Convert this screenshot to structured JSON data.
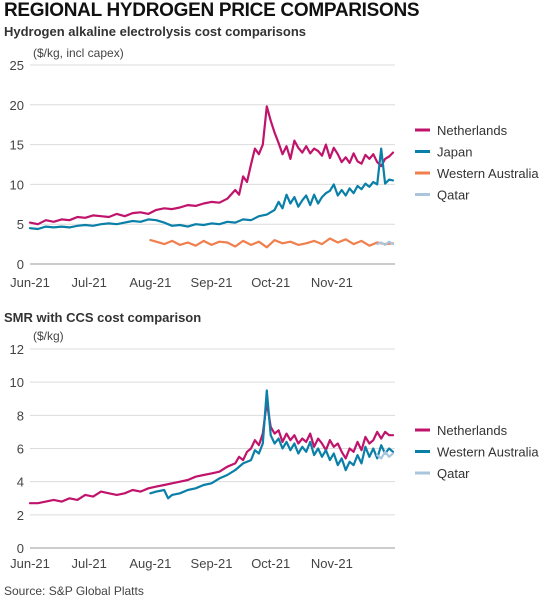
{
  "title": "REGIONAL HYDROGEN PRICE COMPARISONS",
  "source": "Source: S&P Global Platts",
  "chart_data": [
    {
      "type": "line",
      "title": "Hydrogen alkaline electrolysis cost comparisons",
      "ylabel": "($/kg, incl capex)",
      "ylim": [
        0,
        25
      ],
      "yticks": [
        0,
        5,
        10,
        15,
        20,
        25
      ],
      "x_ticks": [
        "Jun-21",
        "Jul-21",
        "Aug-21",
        "Sep-21",
        "Oct-21",
        "Nov-21"
      ],
      "x_tick_days": [
        0,
        30,
        61,
        92,
        122,
        153
      ],
      "x_unit": "days",
      "xlim": [
        0,
        185
      ],
      "grid": true,
      "legend_position": "right",
      "series": [
        {
          "name": "Netherlands",
          "color": "#c0136b",
          "x": [
            0,
            4,
            8,
            12,
            16,
            20,
            24,
            28,
            32,
            36,
            40,
            44,
            48,
            52,
            56,
            60,
            64,
            68,
            72,
            76,
            80,
            84,
            88,
            92,
            96,
            100,
            104,
            106,
            108,
            110,
            112,
            114,
            116,
            118,
            120,
            122,
            124,
            126,
            128,
            130,
            132,
            134,
            136,
            138,
            140,
            142,
            144,
            146,
            148,
            150,
            152,
            154,
            156,
            158,
            160,
            162,
            164,
            166,
            168,
            170,
            172,
            174,
            176,
            178,
            180,
            182,
            184
          ],
          "y": [
            5.2,
            5.0,
            5.5,
            5.3,
            5.6,
            5.5,
            5.9,
            5.8,
            6.1,
            6.0,
            5.9,
            6.3,
            6.0,
            6.4,
            6.5,
            6.3,
            6.8,
            7.0,
            6.9,
            7.1,
            7.4,
            7.3,
            7.6,
            7.8,
            7.7,
            8.2,
            9.3,
            8.7,
            11.0,
            10.3,
            12.5,
            14.5,
            13.8,
            15.0,
            19.8,
            18.0,
            16.5,
            15.2,
            13.8,
            14.8,
            13.2,
            15.5,
            14.6,
            14.0,
            14.8,
            13.9,
            14.5,
            14.2,
            13.6,
            15.0,
            13.3,
            14.6,
            13.8,
            12.8,
            13.4,
            12.7,
            13.9,
            12.9,
            12.6,
            13.7,
            13.2,
            13.8,
            12.8,
            12.3,
            13.2,
            13.5,
            14.0
          ]
        },
        {
          "name": "Japan",
          "color": "#0a7fa8",
          "x": [
            0,
            4,
            8,
            12,
            16,
            20,
            24,
            28,
            32,
            36,
            40,
            44,
            48,
            52,
            56,
            60,
            64,
            68,
            72,
            76,
            80,
            84,
            88,
            92,
            96,
            100,
            104,
            108,
            112,
            116,
            120,
            124,
            126,
            128,
            130,
            132,
            134,
            136,
            138,
            140,
            142,
            144,
            146,
            148,
            150,
            152,
            154,
            156,
            158,
            160,
            162,
            164,
            166,
            168,
            170,
            172,
            174,
            176,
            178,
            180,
            182,
            184
          ],
          "y": [
            4.5,
            4.4,
            4.7,
            4.6,
            4.7,
            4.6,
            4.8,
            4.9,
            4.8,
            5.0,
            5.1,
            5.0,
            5.2,
            5.4,
            5.3,
            5.6,
            5.5,
            5.2,
            4.8,
            4.9,
            4.7,
            5.0,
            4.9,
            5.1,
            5.0,
            5.3,
            5.2,
            5.6,
            5.5,
            6.0,
            6.2,
            6.8,
            7.8,
            7.0,
            8.7,
            7.6,
            8.4,
            7.2,
            8.0,
            8.6,
            7.4,
            8.7,
            7.6,
            8.4,
            8.9,
            9.2,
            10.0,
            8.6,
            9.3,
            8.6,
            9.5,
            8.9,
            9.8,
            9.4,
            10.1,
            9.7,
            10.3,
            10.0,
            14.5,
            10.1,
            10.6,
            10.5
          ]
        },
        {
          "name": "Western Australia",
          "color": "#f07f4e",
          "x": [
            61,
            64,
            68,
            72,
            76,
            80,
            84,
            88,
            92,
            96,
            100,
            104,
            108,
            112,
            116,
            120,
            124,
            128,
            132,
            136,
            140,
            144,
            148,
            152,
            156,
            160,
            164,
            168,
            172,
            176,
            180,
            184
          ],
          "y": [
            3.0,
            2.8,
            2.5,
            2.9,
            2.4,
            2.7,
            2.3,
            2.9,
            2.4,
            2.8,
            2.7,
            2.2,
            2.9,
            2.4,
            2.8,
            2.1,
            3.0,
            2.6,
            2.8,
            2.4,
            2.6,
            2.9,
            2.5,
            3.2,
            2.7,
            3.1,
            2.5,
            2.9,
            2.3,
            2.7,
            2.5,
            2.6
          ]
        },
        {
          "name": "Qatar",
          "color": "#a9c6de",
          "x": [
            176,
            178,
            180,
            182,
            184
          ],
          "y": [
            2.5,
            2.7,
            2.4,
            2.8,
            2.5
          ]
        }
      ]
    },
    {
      "type": "line",
      "title": "SMR with CCS cost comparison",
      "ylabel": "($/kg)",
      "ylim": [
        0,
        12
      ],
      "yticks": [
        0,
        2,
        4,
        6,
        8,
        10,
        12
      ],
      "x_ticks": [
        "Jun-21",
        "Jul-21",
        "Aug-21",
        "Sep-21",
        "Oct-21",
        "Nov-21"
      ],
      "x_tick_days": [
        0,
        30,
        61,
        92,
        122,
        153
      ],
      "x_unit": "days",
      "xlim": [
        0,
        185
      ],
      "grid": true,
      "legend_position": "right",
      "series": [
        {
          "name": "Netherlands",
          "color": "#c0136b",
          "x": [
            0,
            4,
            8,
            12,
            16,
            20,
            24,
            28,
            32,
            36,
            40,
            44,
            48,
            52,
            56,
            60,
            64,
            68,
            72,
            76,
            80,
            84,
            88,
            92,
            96,
            100,
            104,
            106,
            108,
            110,
            112,
            114,
            116,
            118,
            120,
            122,
            124,
            126,
            128,
            130,
            132,
            134,
            136,
            138,
            140,
            142,
            144,
            146,
            148,
            150,
            152,
            154,
            156,
            158,
            160,
            162,
            164,
            166,
            168,
            170,
            172,
            174,
            176,
            178,
            180,
            182,
            184
          ],
          "y": [
            2.7,
            2.7,
            2.8,
            2.9,
            2.8,
            3.0,
            2.9,
            3.2,
            3.1,
            3.4,
            3.3,
            3.2,
            3.3,
            3.5,
            3.4,
            3.6,
            3.7,
            3.8,
            3.9,
            4.0,
            4.1,
            4.3,
            4.4,
            4.5,
            4.6,
            4.9,
            5.1,
            5.5,
            5.3,
            5.8,
            6.0,
            6.5,
            6.2,
            6.9,
            8.8,
            7.3,
            6.9,
            7.1,
            6.4,
            6.9,
            6.5,
            6.8,
            6.3,
            6.6,
            6.4,
            6.9,
            6.1,
            6.6,
            6.3,
            5.9,
            6.5,
            6.1,
            6.3,
            5.8,
            5.4,
            6.0,
            5.8,
            6.4,
            5.9,
            6.7,
            6.3,
            6.5,
            7.0,
            6.6,
            7.0,
            6.8,
            6.8
          ]
        },
        {
          "name": "Western Australia",
          "color": "#0a7fa8",
          "x": [
            61,
            64,
            68,
            70,
            72,
            76,
            80,
            84,
            88,
            92,
            96,
            100,
            104,
            108,
            112,
            114,
            116,
            118,
            120,
            122,
            124,
            126,
            128,
            130,
            132,
            134,
            136,
            138,
            140,
            142,
            144,
            146,
            148,
            150,
            152,
            154,
            156,
            158,
            160,
            162,
            164,
            166,
            168,
            170,
            172,
            174,
            176,
            178,
            180,
            182,
            184
          ],
          "y": [
            3.3,
            3.4,
            3.5,
            3.0,
            3.2,
            3.3,
            3.5,
            3.6,
            3.8,
            3.9,
            4.2,
            4.4,
            4.7,
            5.1,
            5.3,
            5.9,
            5.7,
            6.3,
            9.5,
            6.8,
            6.3,
            6.6,
            6.0,
            6.4,
            5.9,
            6.3,
            5.7,
            6.1,
            5.8,
            6.4,
            5.6,
            6.0,
            5.5,
            5.9,
            5.3,
            5.7,
            5.0,
            5.4,
            4.7,
            5.2,
            5.0,
            5.6,
            5.1,
            6.1,
            5.5,
            6.0,
            5.4,
            6.2,
            5.7,
            6.0,
            5.8
          ]
        },
        {
          "name": "Qatar",
          "color": "#a9c6de",
          "x": [
            176,
            178,
            180,
            182,
            184
          ],
          "y": [
            5.6,
            5.4,
            5.8,
            5.5,
            5.7
          ]
        }
      ]
    }
  ]
}
